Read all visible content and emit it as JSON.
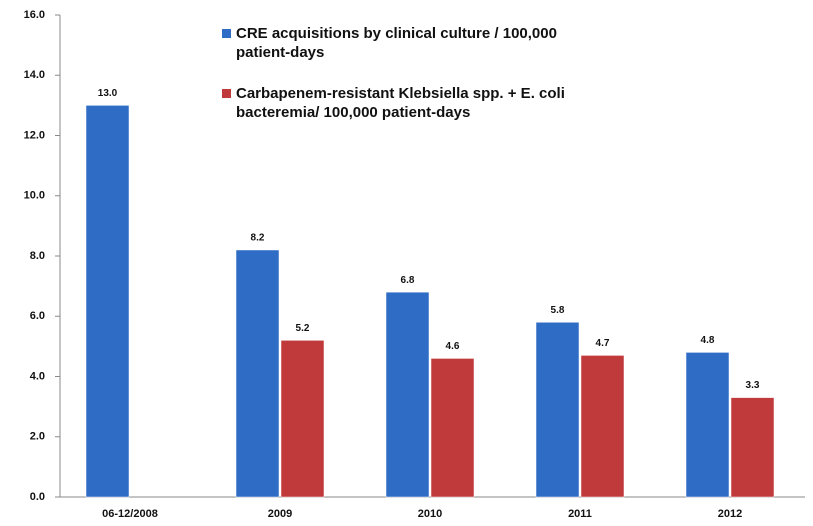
{
  "chart_data": {
    "type": "bar",
    "categories": [
      "06-12/2008",
      "2009",
      "2010",
      "2011",
      "2012"
    ],
    "series": [
      {
        "name": "CRE acquisitions by clinical culture / 100,000 patient-days",
        "color": "#2f6cc6",
        "values": [
          13.0,
          8.2,
          6.8,
          5.8,
          4.8
        ],
        "value_labels": [
          "13.0",
          "8.2",
          "6.8",
          "5.8",
          "4.8"
        ]
      },
      {
        "name": "Carbapenem-resistant Klebsiella spp. + E. coli bacteremia/ 100,000 patient-days",
        "color": "#c0393b",
        "values": [
          null,
          5.2,
          4.6,
          4.7,
          3.3
        ],
        "value_labels": [
          null,
          "5.2",
          "4.6",
          "4.7",
          "3.3"
        ]
      }
    ],
    "ylim": [
      0,
      16
    ],
    "yticks": [
      {
        "value": 0,
        "label": "0.0"
      },
      {
        "value": 2,
        "label": "2.0"
      },
      {
        "value": 4,
        "label": "4.0"
      },
      {
        "value": 6,
        "label": "6.0"
      },
      {
        "value": 8,
        "label": "8.0"
      },
      {
        "value": 10,
        "label": "10.0"
      },
      {
        "value": 12,
        "label": "12.0"
      },
      {
        "value": 14,
        "label": "14.0"
      },
      {
        "value": 16,
        "label": "16.0"
      }
    ],
    "legend": "upper center"
  }
}
